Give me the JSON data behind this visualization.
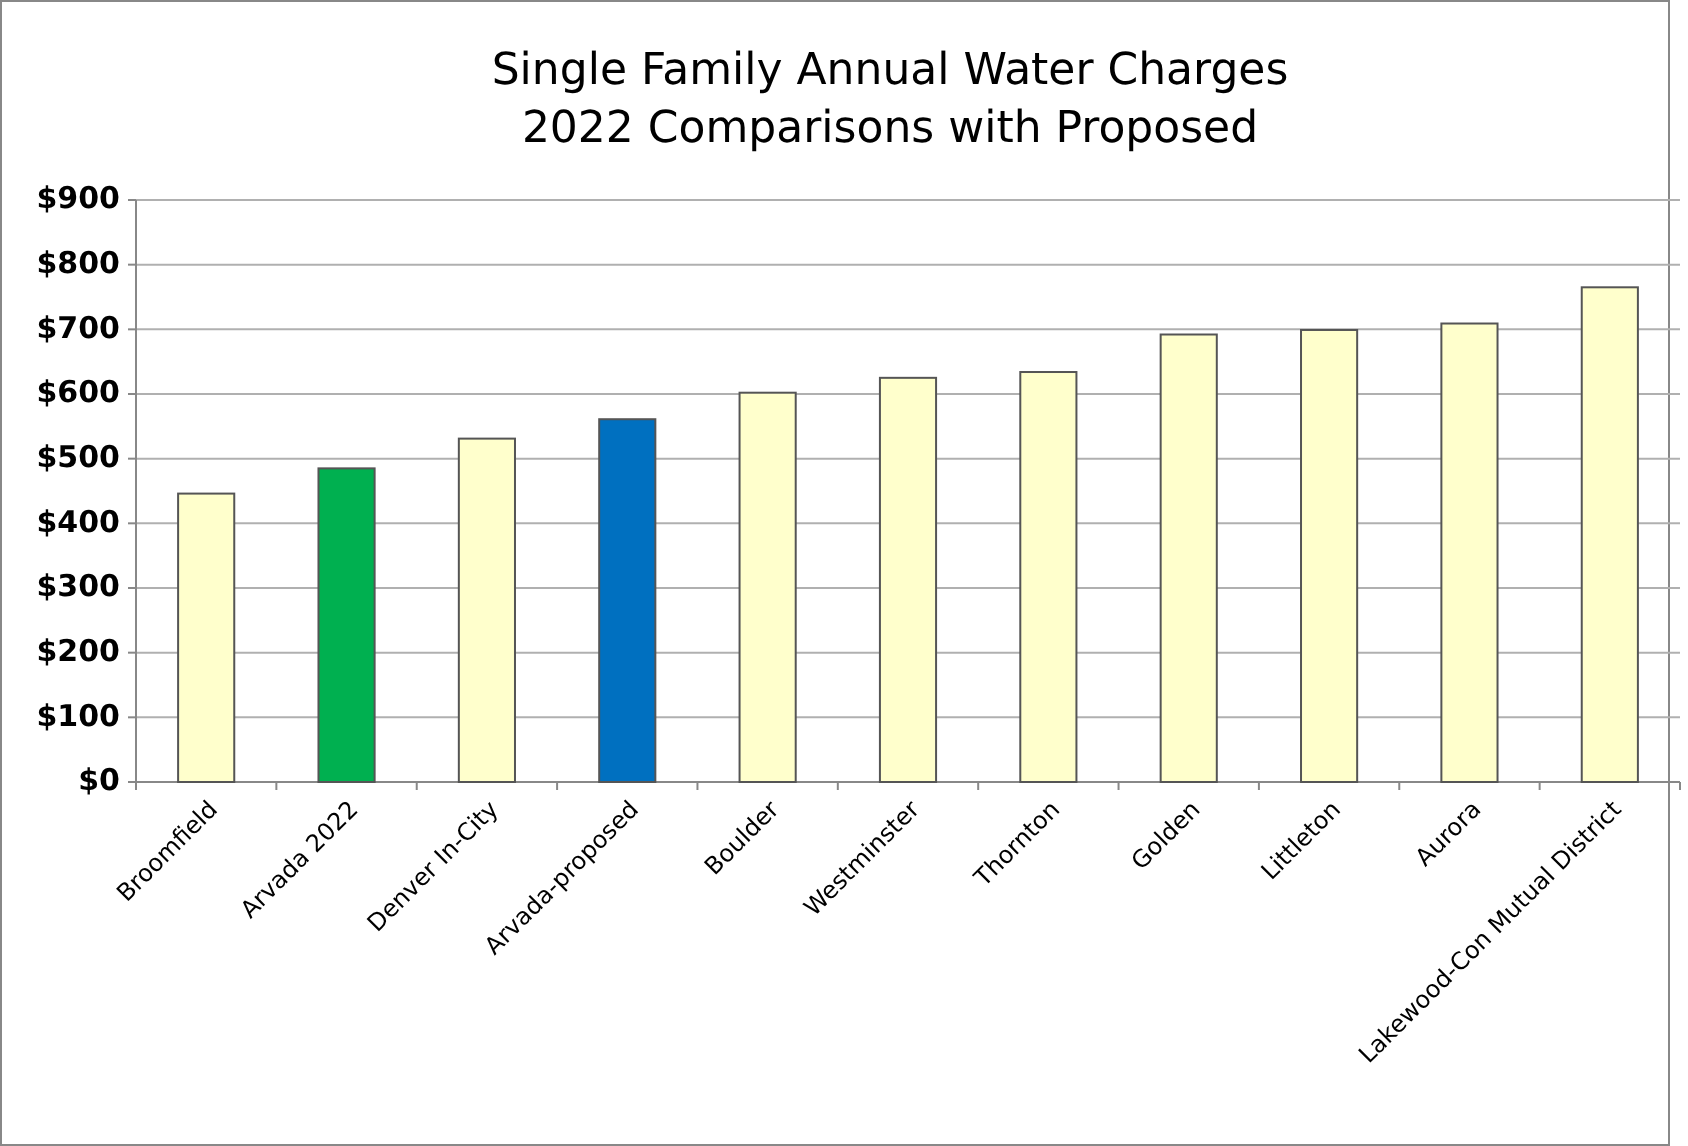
{
  "chart_data": {
    "type": "bar",
    "title": "Single Family Annual Water Charges\n2022 Comparisons with Proposed",
    "categories": [
      "Broomfield",
      "Arvada 2022",
      "Denver In-City",
      "Arvada-proposed",
      "Boulder",
      "Westminster",
      "Thornton",
      "Golden",
      "Littleton",
      "Aurora",
      "Lakewood-Con Mutual District"
    ],
    "values": [
      446,
      485,
      531,
      561,
      602,
      625,
      634,
      692,
      699,
      709,
      765
    ],
    "colors": [
      "#ffffcc",
      "#00b050",
      "#ffffcc",
      "#0070c0",
      "#ffffcc",
      "#ffffcc",
      "#ffffcc",
      "#ffffcc",
      "#ffffcc",
      "#ffffcc",
      "#ffffcc"
    ],
    "ylim": [
      0,
      900
    ],
    "yticks": [
      {
        "value": 0,
        "label": "$0"
      },
      {
        "value": 100,
        "label": "$100"
      },
      {
        "value": 200,
        "label": "$200"
      },
      {
        "value": 300,
        "label": "$300"
      },
      {
        "value": 400,
        "label": "$400"
      },
      {
        "value": 500,
        "label": "$500"
      },
      {
        "value": 600,
        "label": "$600"
      },
      {
        "value": 700,
        "label": "$700"
      },
      {
        "value": 800,
        "label": "$800"
      },
      {
        "value": 900,
        "label": "$900"
      }
    ],
    "grid": "y"
  }
}
